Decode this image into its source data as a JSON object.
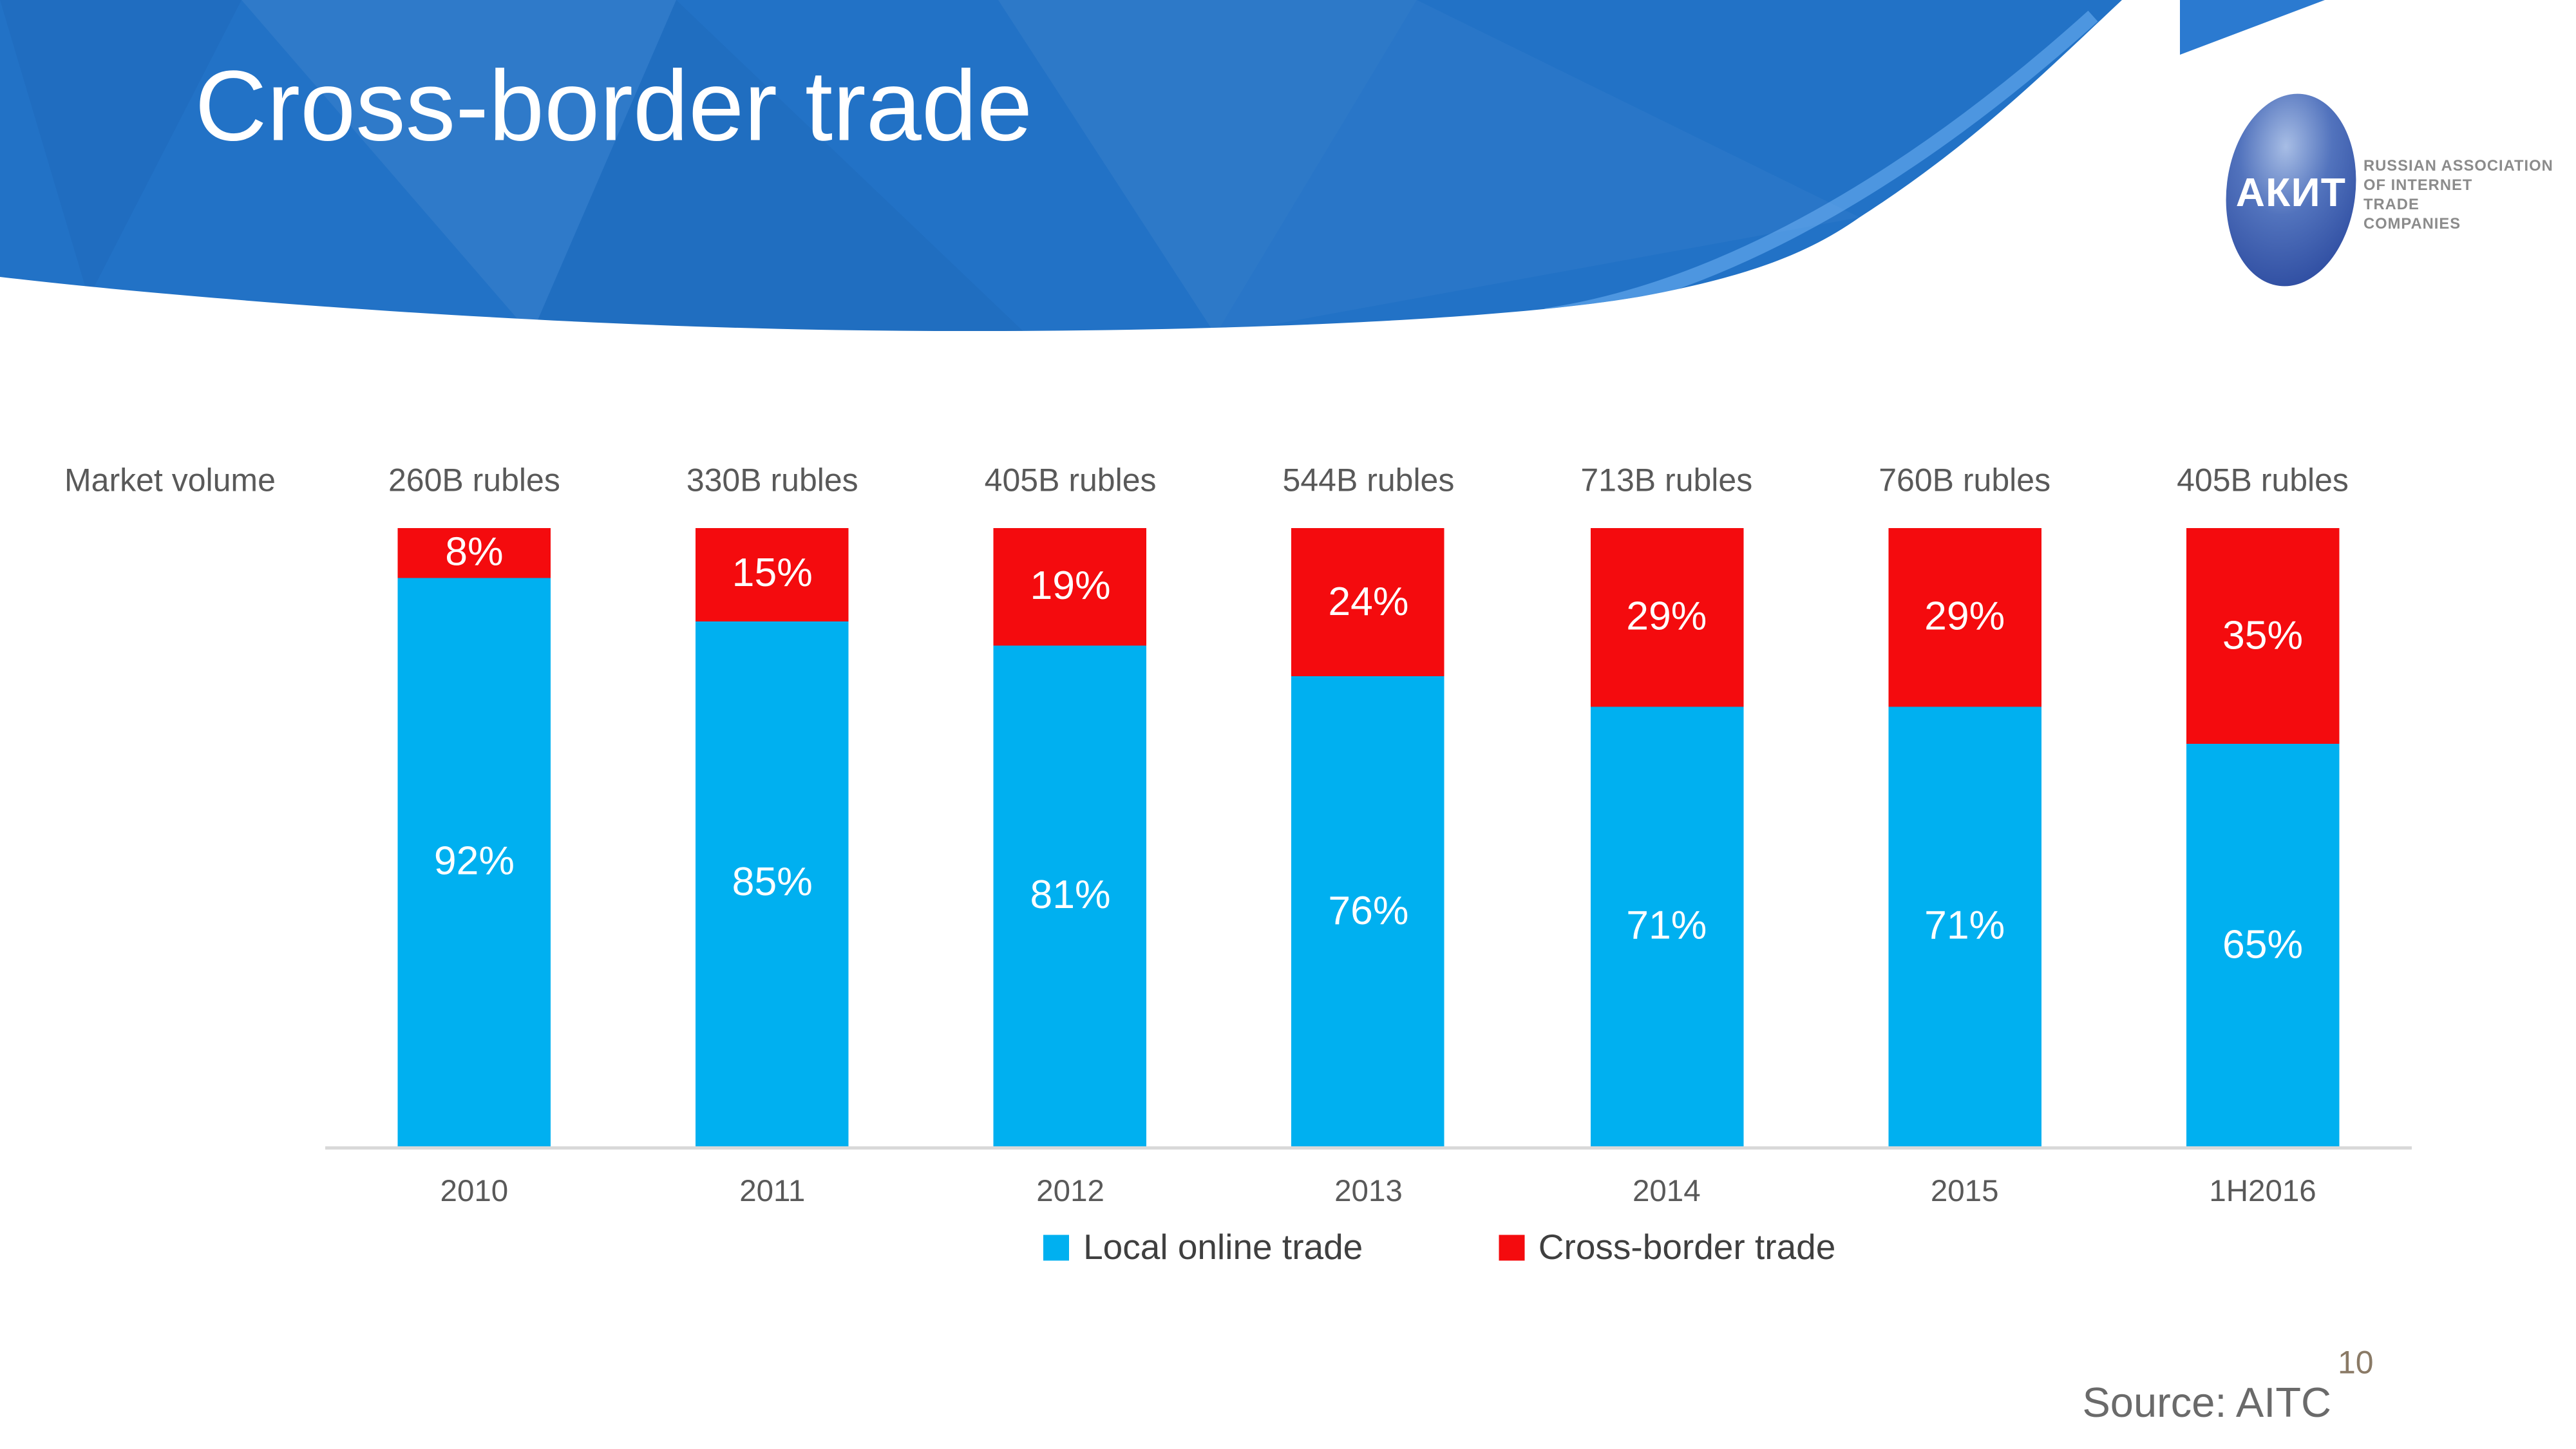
{
  "slide": {
    "title": "Cross-border trade",
    "source": "Source: AITC",
    "page_number": "10"
  },
  "logo": {
    "acronym": "АКИТ",
    "caption_lines": [
      "RUSSIAN ASSOCIATION",
      "OF INTERNET",
      "TRADE",
      "COMPANIES"
    ]
  },
  "chart_data": {
    "type": "bar",
    "stacked": true,
    "units": "percent of market volume",
    "row_label": "Market volume",
    "categories": [
      "2010",
      "2011",
      "2012",
      "2013",
      "2014",
      "2015",
      "1H2016"
    ],
    "market_volumes": [
      "260B rubles",
      "330B rubles",
      "405B rubles",
      "544B rubles",
      "713B rubles",
      "760B rubles",
      "405B rubles"
    ],
    "series": [
      {
        "name": "Local online trade",
        "color": "#00b0f0",
        "values": [
          92,
          85,
          81,
          76,
          71,
          71,
          65
        ]
      },
      {
        "name": "Cross-border trade",
        "color": "#f40b0e",
        "values": [
          8,
          15,
          19,
          24,
          29,
          29,
          35
        ]
      }
    ],
    "value_suffix": "%",
    "ylim": [
      0,
      100
    ],
    "grid": false,
    "legend_position": "bottom",
    "axis_line_color": "#d9d9d9",
    "label_color": "#595959"
  },
  "theme": {
    "header_blue": "#2272c6",
    "header_sliver_blue": "#2b7ad0",
    "title_color": "#ffffff"
  }
}
